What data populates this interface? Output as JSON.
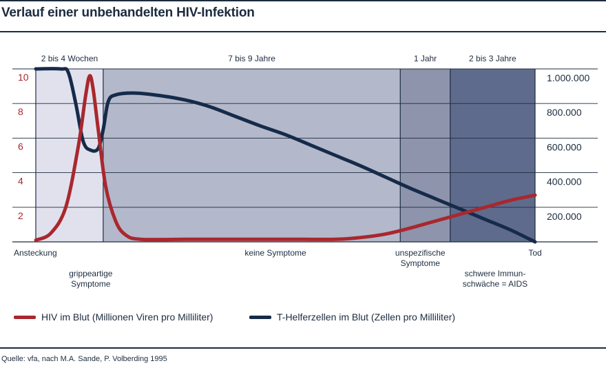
{
  "title": "Verlauf einer unbehandelten HIV-Infektion",
  "source": "Quelle: vfa, nach M.A. Sande, P. Volberding 1995",
  "colors": {
    "hiv": "#a8282e",
    "tcell": "#162b4a",
    "phase1": "#e1e1ed",
    "phase2": "#b4b8cb",
    "phase3": "#8e94ac",
    "phase4": "#5f6b8c",
    "text": "#1c2b3e"
  },
  "chart_data": {
    "type": "line",
    "title": "Verlauf einer unbehandelten HIV-Infektion",
    "x_units": "weeks since infection",
    "xlim": [
      0,
      10
    ],
    "y_left": {
      "label": "HIV im Blut (Millionen Viren pro Milliliter)",
      "lim": [
        0,
        10
      ],
      "ticks": [
        "2",
        "4",
        "6",
        "8",
        "10"
      ]
    },
    "y_right": {
      "label": "T-Helferzellen im Blut (Zellen pro Milliliter)",
      "lim": [
        0,
        1000000
      ],
      "ticks": [
        "200.000",
        "400.000",
        "600.000",
        "800.000",
        "1.000.000"
      ]
    },
    "grid": true,
    "phases": [
      {
        "label": "2 bis 4 Wochen",
        "start": 0.0,
        "end": 1.35
      },
      {
        "label": "7 bis 9 Jahre",
        "start": 1.35,
        "end": 7.3
      },
      {
        "label": "1 Jahr",
        "start": 7.3,
        "end": 8.3
      },
      {
        "label": "2 bis 3 Jahre",
        "start": 8.3,
        "end": 10.0
      }
    ],
    "stage_labels": [
      {
        "text": "Ansteckung",
        "x": 0.0
      },
      {
        "text": "grippeartige\nSymptome",
        "x": 1.1
      },
      {
        "text": "keine Symptome",
        "x": 4.8
      },
      {
        "text": "unspezifische\nSymptome",
        "x": 7.7
      },
      {
        "text": "schwere Immun-\nschwäche = AIDS",
        "x": 9.2
      },
      {
        "text": "Tod",
        "x": 10.0
      }
    ],
    "series": [
      {
        "name": "HIV im Blut (Millionen Viren pro Milliliter)",
        "axis": "left",
        "points": [
          [
            0,
            0.1
          ],
          [
            0.3,
            0.5
          ],
          [
            0.6,
            2.0
          ],
          [
            0.85,
            5.5
          ],
          [
            1.0,
            8.5
          ],
          [
            1.08,
            9.6
          ],
          [
            1.15,
            8.8
          ],
          [
            1.25,
            6.5
          ],
          [
            1.4,
            3.2
          ],
          [
            1.6,
            1.2
          ],
          [
            1.8,
            0.4
          ],
          [
            2.1,
            0.15
          ],
          [
            3,
            0.15
          ],
          [
            4,
            0.15
          ],
          [
            5,
            0.15
          ],
          [
            6,
            0.15
          ],
          [
            6.5,
            0.25
          ],
          [
            7,
            0.45
          ],
          [
            7.5,
            0.8
          ],
          [
            8,
            1.2
          ],
          [
            8.5,
            1.6
          ],
          [
            9,
            2.0
          ],
          [
            9.5,
            2.4
          ],
          [
            10,
            2.7
          ]
        ]
      },
      {
        "name": "T-Helferzellen im Blut (Zellen pro Milliliter)",
        "axis": "right",
        "points": [
          [
            0,
            1000000
          ],
          [
            0.5,
            1000000
          ],
          [
            0.65,
            980000
          ],
          [
            0.8,
            800000
          ],
          [
            0.95,
            580000
          ],
          [
            1.1,
            530000
          ],
          [
            1.25,
            540000
          ],
          [
            1.35,
            650000
          ],
          [
            1.45,
            810000
          ],
          [
            1.6,
            850000
          ],
          [
            2.0,
            860000
          ],
          [
            2.5,
            845000
          ],
          [
            3,
            820000
          ],
          [
            3.5,
            780000
          ],
          [
            4,
            725000
          ],
          [
            4.5,
            670000
          ],
          [
            5,
            620000
          ],
          [
            5.5,
            560000
          ],
          [
            6,
            500000
          ],
          [
            6.5,
            440000
          ],
          [
            7,
            375000
          ],
          [
            7.5,
            310000
          ],
          [
            8,
            250000
          ],
          [
            8.5,
            190000
          ],
          [
            9,
            130000
          ],
          [
            9.5,
            70000
          ],
          [
            10,
            0
          ]
        ]
      }
    ]
  },
  "legend": [
    {
      "label": "HIV im Blut (Millionen Viren pro Milliliter)",
      "color_key": "hiv"
    },
    {
      "label": "T-Helferzellen im Blut (Zellen pro Milliliter)",
      "color_key": "tcell"
    }
  ]
}
